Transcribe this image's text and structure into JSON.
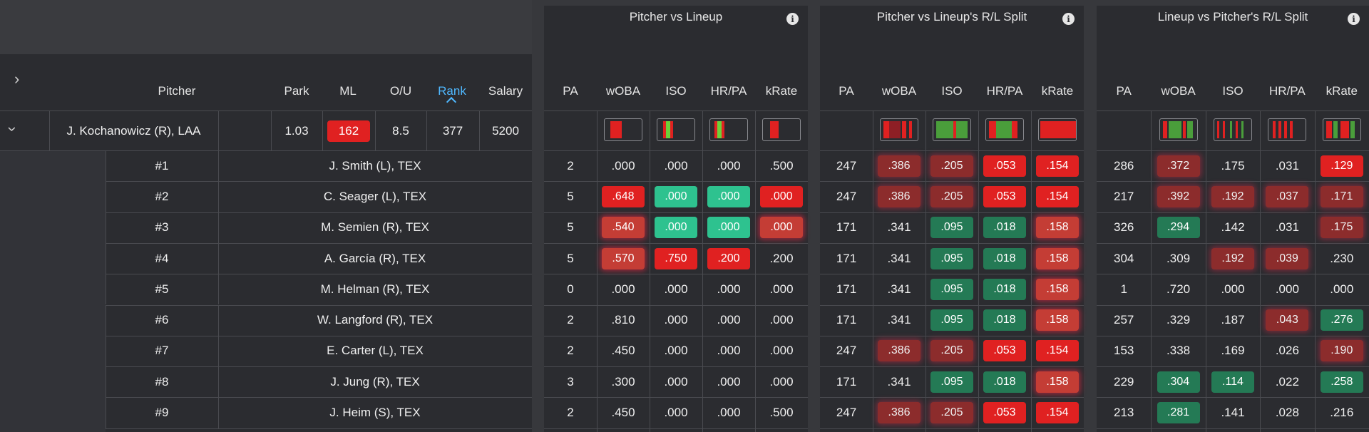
{
  "left": {
    "expand_icon": "chevron-right-icon",
    "collapse_icon": "chevron-down-icon",
    "headers": {
      "pitcher": "Pitcher",
      "park": "Park",
      "ml": "ML",
      "ou": "O/U",
      "rank": "Rank",
      "salary": "Salary"
    },
    "pitcher_row": {
      "name": "J. Kochanowicz (R), LAA",
      "park": "1.03",
      "ml": "162",
      "ou": "8.5",
      "rank": "377",
      "salary": "5200"
    },
    "batters": [
      {
        "order": "#1",
        "name": "J. Smith (L), TEX"
      },
      {
        "order": "#2",
        "name": "C. Seager (L), TEX"
      },
      {
        "order": "#3",
        "name": "M. Semien (R), TEX"
      },
      {
        "order": "#4",
        "name": "A. García (R), TEX"
      },
      {
        "order": "#5",
        "name": "M. Helman (R), TEX"
      },
      {
        "order": "#6",
        "name": "W. Langford (R), TEX"
      },
      {
        "order": "#7",
        "name": "E. Carter (L), TEX"
      },
      {
        "order": "#8",
        "name": "J. Jung (R), TEX"
      },
      {
        "order": "#9",
        "name": "J. Heim (S), TEX"
      }
    ]
  },
  "sections": [
    {
      "title": "Pitcher vs Lineup",
      "cols": [
        "PA",
        "wOBA",
        "ISO",
        "HR/PA",
        "kRate"
      ],
      "rows": [
        [
          [
            "2",
            ""
          ],
          [
            ".000",
            ""
          ],
          [
            ".000",
            ""
          ],
          [
            ".000",
            ""
          ],
          [
            ".500",
            ""
          ]
        ],
        [
          [
            "5",
            ""
          ],
          [
            ".648",
            "r"
          ],
          [
            ".000",
            "g"
          ],
          [
            ".000",
            "g"
          ],
          [
            ".000",
            "r"
          ]
        ],
        [
          [
            "5",
            ""
          ],
          [
            ".540",
            "rh"
          ],
          [
            ".000",
            "g"
          ],
          [
            ".000",
            "g"
          ],
          [
            ".000",
            "rh"
          ]
        ],
        [
          [
            "5",
            ""
          ],
          [
            ".570",
            "rh"
          ],
          [
            ".750",
            "r"
          ],
          [
            ".200",
            "r"
          ],
          [
            ".200",
            ""
          ]
        ],
        [
          [
            "0",
            ""
          ],
          [
            ".000",
            ""
          ],
          [
            ".000",
            ""
          ],
          [
            ".000",
            ""
          ],
          [
            ".000",
            ""
          ]
        ],
        [
          [
            "2",
            ""
          ],
          [
            ".810",
            ""
          ],
          [
            ".000",
            ""
          ],
          [
            ".000",
            ""
          ],
          [
            ".000",
            ""
          ]
        ],
        [
          [
            "2",
            ""
          ],
          [
            ".450",
            ""
          ],
          [
            ".000",
            ""
          ],
          [
            ".000",
            ""
          ],
          [
            ".000",
            ""
          ]
        ],
        [
          [
            "3",
            ""
          ],
          [
            ".300",
            ""
          ],
          [
            ".000",
            ""
          ],
          [
            ".000",
            ""
          ],
          [
            ".000",
            ""
          ]
        ],
        [
          [
            "2",
            ""
          ],
          [
            ".450",
            ""
          ],
          [
            ".000",
            ""
          ],
          [
            ".000",
            ""
          ],
          [
            ".500",
            ""
          ]
        ]
      ]
    },
    {
      "title": "Pitcher vs Lineup's R/L Split",
      "cols": [
        "PA",
        "wOBA",
        "ISO",
        "HR/PA",
        "kRate"
      ],
      "rows": [
        [
          [
            "247",
            ""
          ],
          [
            ".386",
            "rm"
          ],
          [
            ".205",
            "rm"
          ],
          [
            ".053",
            "r"
          ],
          [
            ".154",
            "r"
          ]
        ],
        [
          [
            "247",
            ""
          ],
          [
            ".386",
            "rm"
          ],
          [
            ".205",
            "rm"
          ],
          [
            ".053",
            "r"
          ],
          [
            ".154",
            "r"
          ]
        ],
        [
          [
            "171",
            ""
          ],
          [
            ".341",
            ""
          ],
          [
            ".095",
            "gd"
          ],
          [
            ".018",
            "gd"
          ],
          [
            ".158",
            "rh"
          ]
        ],
        [
          [
            "171",
            ""
          ],
          [
            ".341",
            ""
          ],
          [
            ".095",
            "gd"
          ],
          [
            ".018",
            "gd"
          ],
          [
            ".158",
            "rh"
          ]
        ],
        [
          [
            "171",
            ""
          ],
          [
            ".341",
            ""
          ],
          [
            ".095",
            "gd"
          ],
          [
            ".018",
            "gd"
          ],
          [
            ".158",
            "rh"
          ]
        ],
        [
          [
            "171",
            ""
          ],
          [
            ".341",
            ""
          ],
          [
            ".095",
            "gd"
          ],
          [
            ".018",
            "gd"
          ],
          [
            ".158",
            "rh"
          ]
        ],
        [
          [
            "247",
            ""
          ],
          [
            ".386",
            "rm"
          ],
          [
            ".205",
            "rm"
          ],
          [
            ".053",
            "r"
          ],
          [
            ".154",
            "r"
          ]
        ],
        [
          [
            "171",
            ""
          ],
          [
            ".341",
            ""
          ],
          [
            ".095",
            "gd"
          ],
          [
            ".018",
            "gd"
          ],
          [
            ".158",
            "rh"
          ]
        ],
        [
          [
            "247",
            ""
          ],
          [
            ".386",
            "rm"
          ],
          [
            ".205",
            "rm"
          ],
          [
            ".053",
            "r"
          ],
          [
            ".154",
            "r"
          ]
        ]
      ]
    },
    {
      "title": "Lineup vs Pitcher's R/L Split",
      "cols": [
        "PA",
        "wOBA",
        "ISO",
        "HR/PA",
        "kRate"
      ],
      "rows": [
        [
          [
            "286",
            ""
          ],
          [
            ".372",
            "rm"
          ],
          [
            ".175",
            ""
          ],
          [
            ".031",
            ""
          ],
          [
            ".129",
            "r"
          ]
        ],
        [
          [
            "217",
            ""
          ],
          [
            ".392",
            "rm"
          ],
          [
            ".192",
            "rm"
          ],
          [
            ".037",
            "rm"
          ],
          [
            ".171",
            "rm"
          ]
        ],
        [
          [
            "326",
            ""
          ],
          [
            ".294",
            "gd"
          ],
          [
            ".142",
            ""
          ],
          [
            ".031",
            ""
          ],
          [
            ".175",
            "rm"
          ]
        ],
        [
          [
            "304",
            ""
          ],
          [
            ".309",
            ""
          ],
          [
            ".192",
            "rm"
          ],
          [
            ".039",
            "rm"
          ],
          [
            ".230",
            ""
          ]
        ],
        [
          [
            "1",
            ""
          ],
          [
            ".720",
            ""
          ],
          [
            ".000",
            ""
          ],
          [
            ".000",
            ""
          ],
          [
            ".000",
            ""
          ]
        ],
        [
          [
            "257",
            ""
          ],
          [
            ".329",
            ""
          ],
          [
            ".187",
            ""
          ],
          [
            ".043",
            "rm"
          ],
          [
            ".276",
            "gd"
          ]
        ],
        [
          [
            "153",
            ""
          ],
          [
            ".338",
            ""
          ],
          [
            ".169",
            ""
          ],
          [
            ".026",
            ""
          ],
          [
            ".190",
            "rm"
          ]
        ],
        [
          [
            "229",
            ""
          ],
          [
            ".304",
            "gd"
          ],
          [
            ".114",
            "gd"
          ],
          [
            ".022",
            ""
          ],
          [
            ".258",
            "gd"
          ]
        ],
        [
          [
            "213",
            ""
          ],
          [
            ".281",
            "gd"
          ],
          [
            ".141",
            ""
          ],
          [
            ".028",
            ""
          ],
          [
            ".216",
            ""
          ]
        ]
      ]
    }
  ],
  "info_icon": "info-icon",
  "colors": {
    "red": "#e02121",
    "dark_red": "#8e1f25",
    "green": "#2ec28f",
    "dark_green": "#247a55",
    "rank_accent": "#4fb8ff"
  }
}
